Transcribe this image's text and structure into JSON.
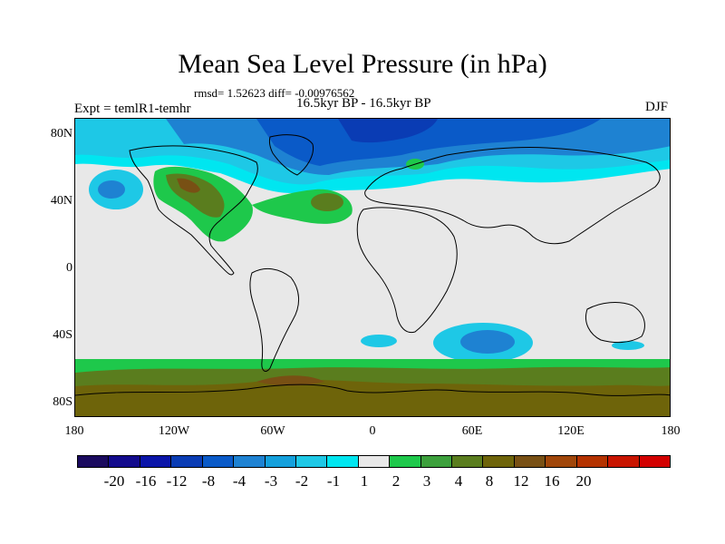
{
  "title": "Mean Sea Level Pressure (in hPa)",
  "stats": "rmsd= 1.52623 diff= -0.00976562",
  "period": "16.5kyr BP - 16.5kyr BP",
  "experiment": "Expt = temlR1-temhr",
  "season": "DJF",
  "lat_labels": [
    "80N",
    "40N",
    "0",
    "40S",
    "80S"
  ],
  "lon_labels": [
    "180",
    "120W",
    "60W",
    "0",
    "60E",
    "120E",
    "180"
  ],
  "colorbar": {
    "colors": [
      "#1a0a5e",
      "#120a8c",
      "#0a14a8",
      "#0a3cb4",
      "#0a5ac8",
      "#1e82d2",
      "#14a0dc",
      "#1ec8e6",
      "#00e6f0",
      "#e8e8e8",
      "#1ec84b",
      "#3ca03c",
      "#5a7d1e",
      "#6e640a",
      "#785014",
      "#a0460a",
      "#b43200",
      "#c81400",
      "#d20000"
    ],
    "labels": [
      "-20",
      "-16",
      "-12",
      "-8",
      "-4",
      "-3",
      "-2",
      "-1",
      "1",
      "2",
      "3",
      "4",
      "8",
      "12",
      "16",
      "20"
    ]
  },
  "legend_colors": {
    "neutral": "#e8e8e8",
    "light_cyan": "#00e6f0",
    "cyan": "#1ec8e6",
    "blue": "#1e82d2",
    "dark_blue": "#0a5ac8",
    "green": "#1ec84b",
    "olive": "#5a7d1e",
    "brown": "#6e640a",
    "dark_brown": "#785014"
  }
}
